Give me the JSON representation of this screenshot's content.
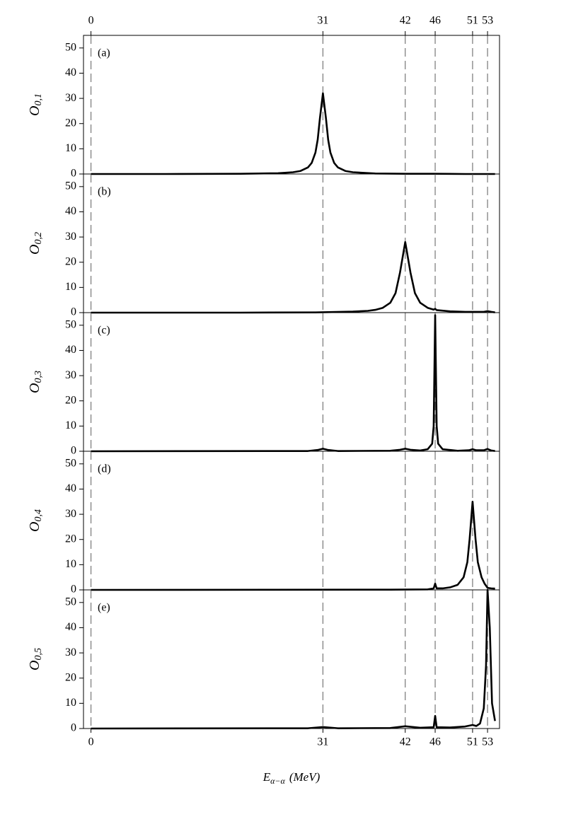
{
  "chart_data": [
    {
      "type": "line",
      "panel_label": "(a)",
      "ylabel": "O",
      "ylabel_subscript": "0,1",
      "x": [
        0,
        10,
        20,
        25,
        27,
        28,
        29,
        29.5,
        30,
        30.3,
        30.6,
        31,
        31.4,
        31.7,
        32,
        32.5,
        33,
        34,
        35,
        38,
        42,
        46,
        50,
        54
      ],
      "series": [
        {
          "color": "#000000",
          "values": [
            0,
            0,
            0.1,
            0.3,
            0.7,
            1.2,
            2.6,
            4.4,
            8.5,
            13.6,
            22.2,
            32,
            22.2,
            13.6,
            8.5,
            4.4,
            2.6,
            1.2,
            0.7,
            0.2,
            0.1,
            0.1,
            0,
            0
          ]
        }
      ],
      "xlim": [
        -1,
        54.6
      ],
      "ylim": [
        0,
        55
      ],
      "yticks": [
        0,
        10,
        20,
        30,
        40,
        50
      ],
      "xticks": [
        0,
        31,
        42,
        46,
        51,
        53
      ]
    },
    {
      "type": "line",
      "panel_label": "(b)",
      "ylabel": "O",
      "ylabel_subscript": "0,2",
      "x": [
        0,
        20,
        30,
        35,
        37,
        38,
        39,
        40,
        40.7,
        41.3,
        42,
        42.7,
        43.3,
        44,
        45,
        45.8,
        46,
        46.2,
        48,
        50,
        52.5,
        53,
        53.5,
        54
      ],
      "series": [
        {
          "color": "#000000",
          "values": [
            0,
            0,
            0.1,
            0.4,
            0.7,
            1.1,
            1.9,
            3.9,
            7.7,
            15.9,
            28,
            15.9,
            7.7,
            3.9,
            1.9,
            1.2,
            1.5,
            1,
            0.5,
            0.3,
            0.3,
            0.6,
            0.3,
            0.1
          ]
        }
      ],
      "xlim": [
        -1,
        54.6
      ],
      "ylim": [
        0,
        55
      ],
      "yticks": [
        0,
        10,
        20,
        30,
        40,
        50
      ],
      "xticks": [
        0,
        31,
        42,
        46,
        51,
        53
      ]
    },
    {
      "type": "line",
      "panel_label": "(c)",
      "ylabel": "O",
      "ylabel_subscript": "0,3",
      "x": [
        0,
        29,
        30.3,
        31,
        31.7,
        33,
        40,
        41.3,
        42,
        42.7,
        44,
        45,
        45.6,
        45.8,
        46,
        46.2,
        46.4,
        47,
        49,
        50.5,
        51,
        51.5,
        52.5,
        53,
        53.5,
        54
      ],
      "series": [
        {
          "color": "#000000",
          "values": [
            0,
            0.1,
            0.5,
            1,
            0.5,
            0.1,
            0.2,
            0.6,
            1,
            0.6,
            0.3,
            0.8,
            3,
            10,
            54,
            10,
            3,
            0.8,
            0.2,
            0.4,
            0.8,
            0.4,
            0.4,
            0.9,
            0.3,
            0.1
          ]
        }
      ],
      "xlim": [
        -1,
        54.6
      ],
      "ylim": [
        0,
        55
      ],
      "yticks": [
        0,
        10,
        20,
        30,
        40,
        50
      ],
      "xticks": [
        0,
        31,
        42,
        46,
        51,
        53
      ]
    },
    {
      "type": "line",
      "panel_label": "(d)",
      "ylabel": "O",
      "ylabel_subscript": "0,4",
      "x": [
        0,
        40,
        45,
        45.8,
        46,
        46.2,
        47,
        48,
        49,
        49.8,
        50.3,
        50.6,
        51,
        51.4,
        51.7,
        52.2,
        52.6,
        53,
        53.5,
        54
      ],
      "series": [
        {
          "color": "#000000",
          "values": [
            0,
            0.1,
            0.2,
            0.6,
            2.5,
            0.6,
            0.6,
            1,
            2,
            5,
            11,
            20,
            35,
            20,
            11,
            5,
            2.5,
            0.8,
            0.6,
            0.5
          ]
        }
      ],
      "xlim": [
        -1,
        54.6
      ],
      "ylim": [
        0,
        55
      ],
      "yticks": [
        0,
        10,
        20,
        30,
        40,
        50
      ],
      "xticks": [
        0,
        31,
        42,
        46,
        51,
        53
      ]
    },
    {
      "type": "line",
      "panel_label": "(e)",
      "ylabel": "O",
      "ylabel_subscript": "0,5",
      "xlabel": "E",
      "xlabel_subscript": "α−α",
      "xlabel_unit": "(MeV)",
      "x": [
        0,
        29,
        31,
        33,
        40,
        42,
        44,
        45.8,
        46,
        46.2,
        48,
        50,
        51,
        51.5,
        52,
        52.5,
        52.8,
        53,
        53.3,
        53.6,
        54
      ],
      "series": [
        {
          "color": "#000000",
          "values": [
            0,
            0.1,
            0.6,
            0.1,
            0.2,
            0.9,
            0.3,
            0.5,
            5,
            0.5,
            0.4,
            0.8,
            1.4,
            1,
            2,
            8,
            25,
            55,
            40,
            10,
            3
          ]
        }
      ],
      "xlim": [
        -1,
        54.6
      ],
      "ylim": [
        0,
        55
      ],
      "yticks": [
        0,
        10,
        20,
        30,
        40,
        50
      ],
      "xticks": [
        0,
        31,
        42,
        46,
        51,
        53
      ]
    }
  ]
}
